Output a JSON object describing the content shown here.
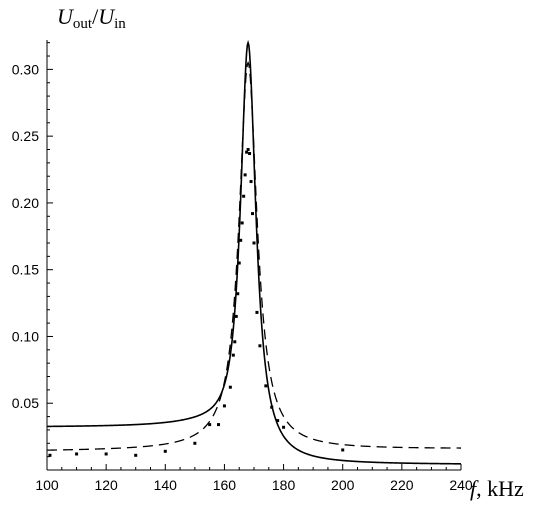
{
  "chart_data": {
    "type": "line",
    "title": "",
    "ylabel_main": "U",
    "ylabel_sub_num": "out",
    "ylabel_sep": "/",
    "ylabel_sub_den": "in",
    "xlabel_var": "f",
    "xlabel_unit": ", kHz",
    "xlim": [
      100,
      240
    ],
    "ylim": [
      0.0,
      0.322
    ],
    "xticks": [
      100,
      120,
      140,
      160,
      180,
      200,
      220,
      240
    ],
    "xtick_labels": [
      "100",
      "120",
      "140",
      "160",
      "180",
      "200",
      "220",
      "240"
    ],
    "yticks": [
      0.05,
      0.1,
      0.15,
      0.2,
      0.25,
      0.3
    ],
    "ytick_labels": [
      "0.05",
      "0.10",
      "0.15",
      "0.20",
      "0.25",
      "0.30"
    ],
    "series": [
      {
        "style": "solid",
        "model": "lorentzian",
        "f0": 168,
        "peak": 0.32,
        "width": 3.2,
        "baseline": 0.028,
        "baseline_decay": 30
      },
      {
        "style": "dashed",
        "model": "lorentzian",
        "f0": 168,
        "peak": 0.305,
        "width": 3.7,
        "baseline": 0.014,
        "baseline_growth": 6e-05
      },
      {
        "style": "points",
        "x": [
          101,
          110,
          120,
          130,
          140,
          150,
          155,
          158,
          160,
          162,
          163,
          163.5,
          164,
          164.5,
          165,
          165.5,
          166,
          166.5,
          167,
          167.5,
          168,
          168.5,
          169,
          169.5,
          170,
          171,
          172,
          174,
          176,
          178,
          180,
          200
        ],
        "y": [
          0.011,
          0.012,
          0.012,
          0.011,
          0.014,
          0.02,
          0.034,
          0.034,
          0.048,
          0.062,
          0.086,
          0.096,
          0.115,
          0.132,
          0.155,
          0.172,
          0.185,
          0.205,
          0.221,
          0.238,
          0.24,
          0.237,
          0.216,
          0.192,
          0.17,
          0.118,
          0.093,
          0.063,
          0.047,
          0.037,
          0.032,
          0.015
        ]
      }
    ]
  }
}
